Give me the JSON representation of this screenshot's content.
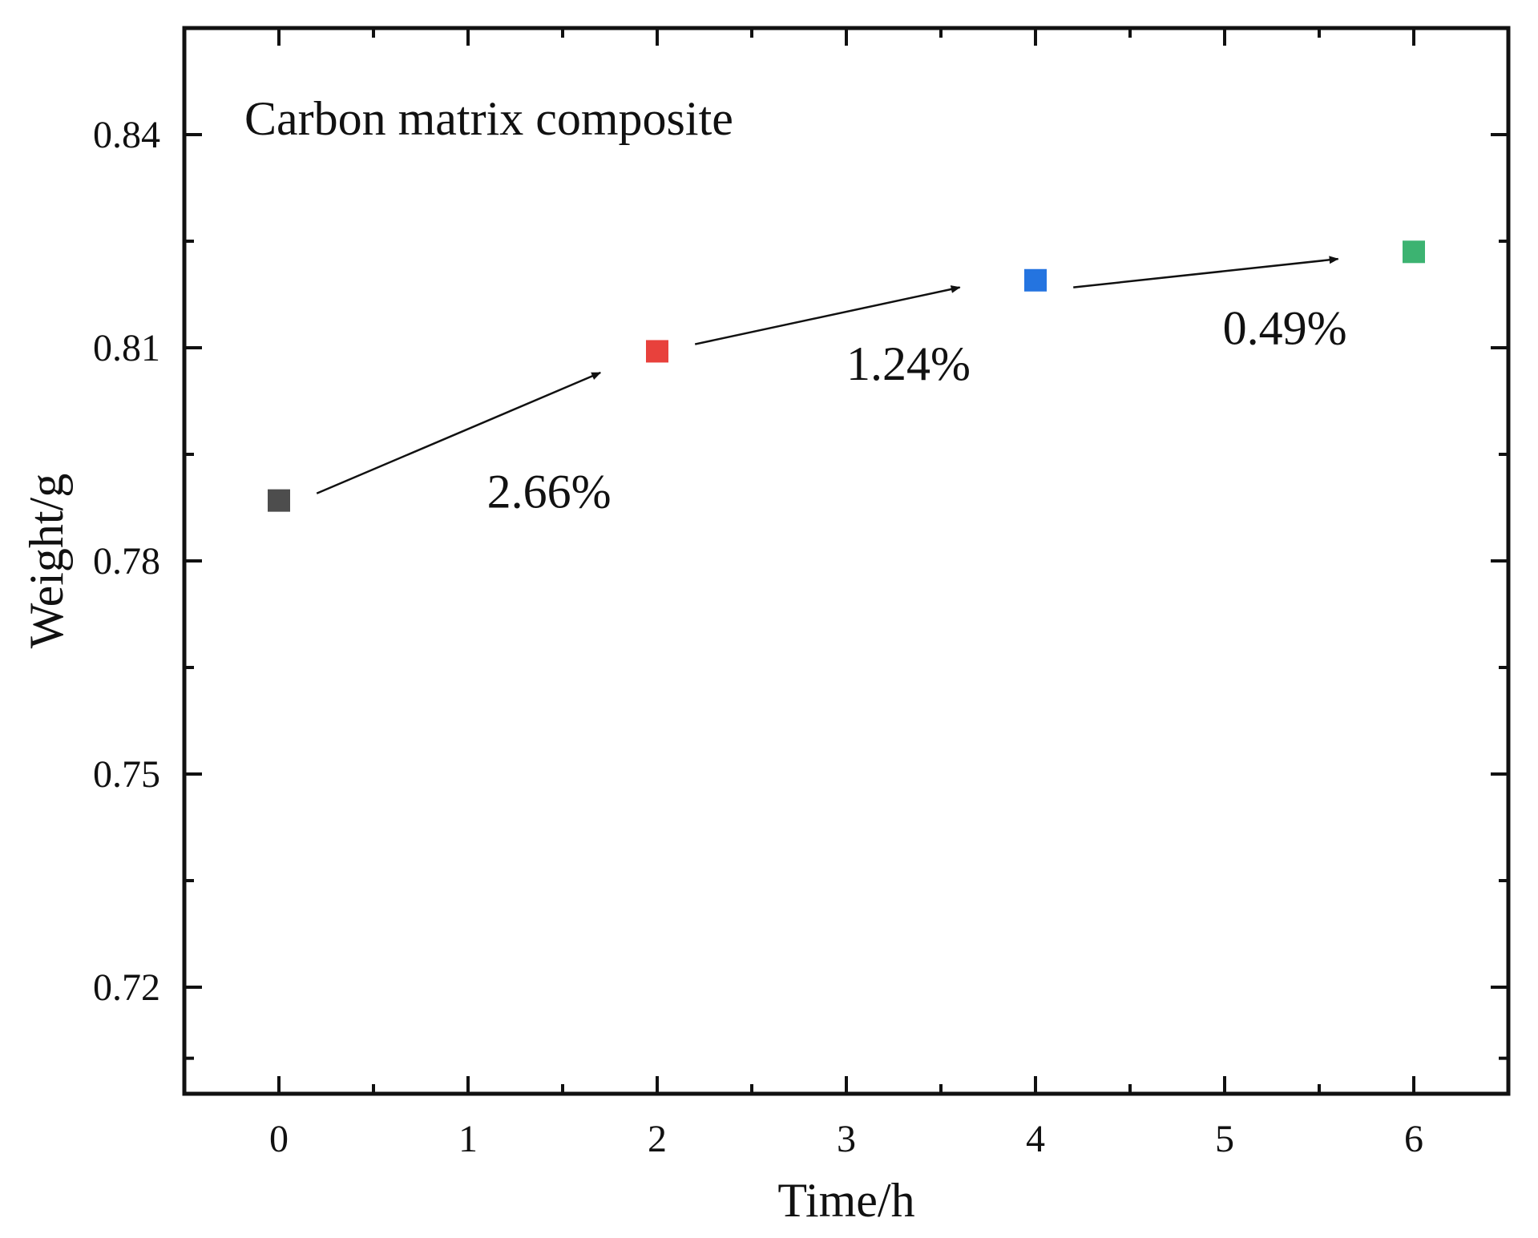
{
  "chart_data": {
    "type": "scatter",
    "title": "Carbon matrix composite",
    "xlabel": "Time/h",
    "ylabel": "Weight/g",
    "xlim": [
      -0.5,
      6.5
    ],
    "ylim": [
      0.705,
      0.855
    ],
    "x_ticks": [
      0,
      1,
      2,
      3,
      4,
      5,
      6
    ],
    "x_tick_labels": [
      "0",
      "1",
      "2",
      "3",
      "4",
      "5",
      "6"
    ],
    "x_minor_ticks": [
      0.5,
      1.5,
      2.5,
      3.5,
      4.5,
      5.5
    ],
    "y_ticks": [
      0.72,
      0.75,
      0.78,
      0.81,
      0.84
    ],
    "y_tick_labels": [
      "0.72",
      "0.75",
      "0.78",
      "0.81",
      "0.84"
    ],
    "y_minor_ticks": [
      0.71,
      0.735,
      0.765,
      0.795,
      0.825
    ],
    "grid": false,
    "series": [
      {
        "name": "Weight",
        "x": [
          0,
          2,
          4,
          6
        ],
        "y": [
          0.7885,
          0.8095,
          0.8195,
          0.8235
        ],
        "colors": [
          "#4d4d4d",
          "#e8413c",
          "#2474e0",
          "#3cb371"
        ]
      }
    ],
    "annotations": [
      {
        "text": "2.66%",
        "from": [
          0.2,
          0.7895
        ],
        "to": [
          1.7,
          0.8065
        ],
        "label_at": [
          1.1,
          0.7875
        ]
      },
      {
        "text": "1.24%",
        "from": [
          2.2,
          0.8105
        ],
        "to": [
          3.6,
          0.8185
        ],
        "label_at": [
          3.0,
          0.8055
        ]
      },
      {
        "text": "0.49%",
        "from": [
          4.2,
          0.8185
        ],
        "to": [
          5.6,
          0.8225
        ],
        "label_at": [
          4.99,
          0.8105
        ]
      }
    ]
  }
}
